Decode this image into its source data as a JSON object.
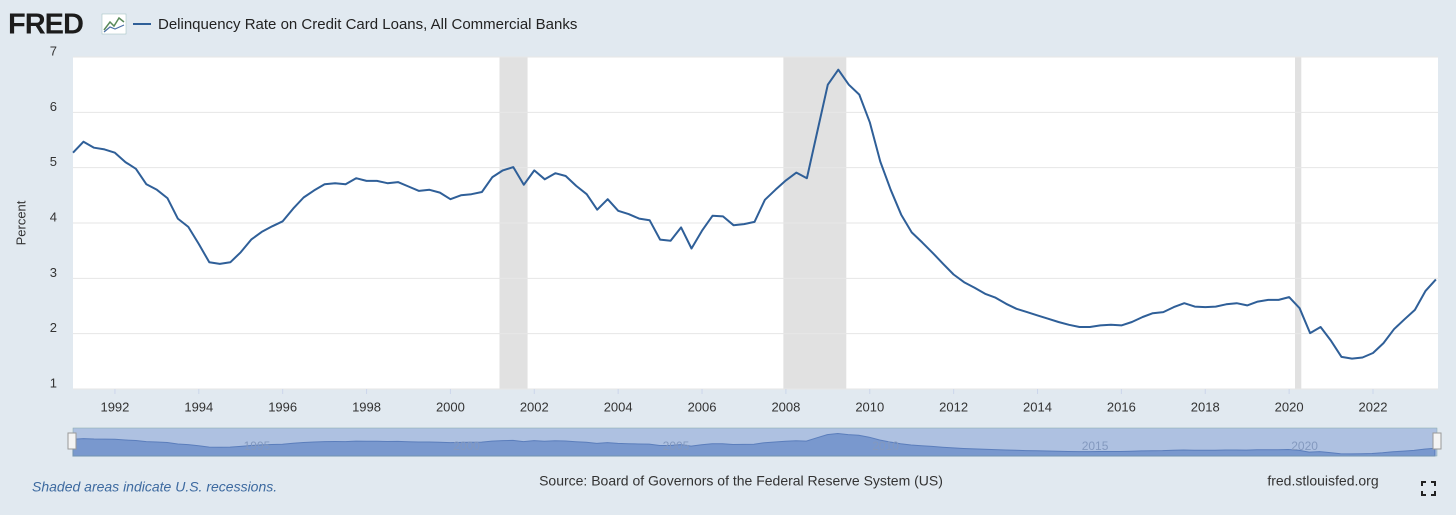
{
  "logo": "FRED",
  "chart_data": {
    "type": "line",
    "y_label": "Percent",
    "x": [
      1991,
      1991.25,
      1991.5,
      1991.75,
      1992,
      1992.25,
      1992.5,
      1992.75,
      1993,
      1993.25,
      1993.5,
      1993.75,
      1994,
      1994.25,
      1994.5,
      1994.75,
      1995,
      1995.25,
      1995.5,
      1995.75,
      1996,
      1996.25,
      1996.5,
      1996.75,
      1997,
      1997.25,
      1997.5,
      1997.75,
      1998,
      1998.25,
      1998.5,
      1998.75,
      1999,
      1999.25,
      1999.5,
      1999.75,
      2000,
      2000.25,
      2000.5,
      2000.75,
      2001,
      2001.25,
      2001.5,
      2001.75,
      2002,
      2002.25,
      2002.5,
      2002.75,
      2003,
      2003.25,
      2003.5,
      2003.75,
      2004,
      2004.25,
      2004.5,
      2004.75,
      2005,
      2005.25,
      2005.5,
      2005.75,
      2006,
      2006.25,
      2006.5,
      2006.75,
      2007,
      2007.25,
      2007.5,
      2007.75,
      2008,
      2008.25,
      2008.5,
      2008.75,
      2009,
      2009.25,
      2009.5,
      2009.75,
      2010,
      2010.25,
      2010.5,
      2010.75,
      2011,
      2011.25,
      2011.5,
      2011.75,
      2012,
      2012.25,
      2012.5,
      2012.75,
      2013,
      2013.25,
      2013.5,
      2013.75,
      2014,
      2014.25,
      2014.5,
      2014.75,
      2015,
      2015.25,
      2015.5,
      2015.75,
      2016,
      2016.25,
      2016.5,
      2016.75,
      2017,
      2017.25,
      2017.5,
      2017.75,
      2018,
      2018.25,
      2018.5,
      2018.75,
      2019,
      2019.25,
      2019.5,
      2019.75,
      2020,
      2020.25,
      2020.5,
      2020.75,
      2021,
      2021.25,
      2021.5,
      2021.75,
      2022,
      2022.25,
      2022.5,
      2022.75,
      2023,
      2023.25,
      2023.5
    ],
    "series": [
      {
        "name": "Delinquency Rate on Credit Card Loans, All Commercial Banks",
        "color": "#2f5f98",
        "values": [
          5.27,
          5.47,
          5.36,
          5.33,
          5.27,
          5.1,
          4.98,
          4.7,
          4.6,
          4.45,
          4.08,
          3.93,
          3.62,
          3.29,
          3.26,
          3.29,
          3.47,
          3.7,
          3.84,
          3.94,
          4.03,
          4.26,
          4.46,
          4.59,
          4.7,
          4.72,
          4.7,
          4.81,
          4.76,
          4.76,
          4.72,
          4.74,
          4.66,
          4.58,
          4.6,
          4.55,
          4.43,
          4.5,
          4.52,
          4.56,
          4.83,
          4.95,
          5.01,
          4.69,
          4.95,
          4.79,
          4.9,
          4.85,
          4.67,
          4.52,
          4.24,
          4.43,
          4.22,
          4.16,
          4.08,
          4.05,
          3.7,
          3.68,
          3.92,
          3.54,
          3.86,
          4.13,
          4.12,
          3.96,
          3.98,
          4.02,
          4.42,
          4.6,
          4.77,
          4.91,
          4.81,
          5.66,
          6.5,
          6.77,
          6.5,
          6.32,
          5.82,
          5.11,
          4.6,
          4.15,
          3.83,
          3.65,
          3.46,
          3.26,
          3.07,
          2.93,
          2.83,
          2.72,
          2.65,
          2.54,
          2.45,
          2.39,
          2.33,
          2.27,
          2.21,
          2.16,
          2.12,
          2.12,
          2.15,
          2.16,
          2.15,
          2.21,
          2.3,
          2.37,
          2.39,
          2.48,
          2.55,
          2.49,
          2.48,
          2.49,
          2.53,
          2.55,
          2.51,
          2.58,
          2.61,
          2.61,
          2.66,
          2.46,
          2.01,
          2.12,
          1.87,
          1.58,
          1.55,
          1.57,
          1.65,
          1.83,
          2.08,
          2.26,
          2.43,
          2.77,
          2.98
        ]
      }
    ],
    "xlim": [
      1991,
      2023.55
    ],
    "xticks": [
      1992,
      1994,
      1996,
      1998,
      2000,
      2002,
      2004,
      2006,
      2008,
      2010,
      2012,
      2014,
      2016,
      2018,
      2020,
      2022
    ],
    "ylim": [
      1,
      7
    ],
    "yticks": [
      1,
      2,
      3,
      4,
      5,
      6,
      7
    ],
    "grid": true,
    "recessions": [
      [
        2001.17,
        2001.84
      ],
      [
        2007.94,
        2009.44
      ],
      [
        2020.14,
        2020.29
      ]
    ],
    "recession_color": "#e1e1e1",
    "navigator_xticks": [
      1995,
      2000,
      2005,
      2010,
      2015,
      2020
    ]
  },
  "footer": {
    "note": "Shaded areas indicate U.S. recessions.",
    "source": "Source: Board of Governors of the Federal Reserve System (US)",
    "site": "fred.stlouisfed.org"
  }
}
